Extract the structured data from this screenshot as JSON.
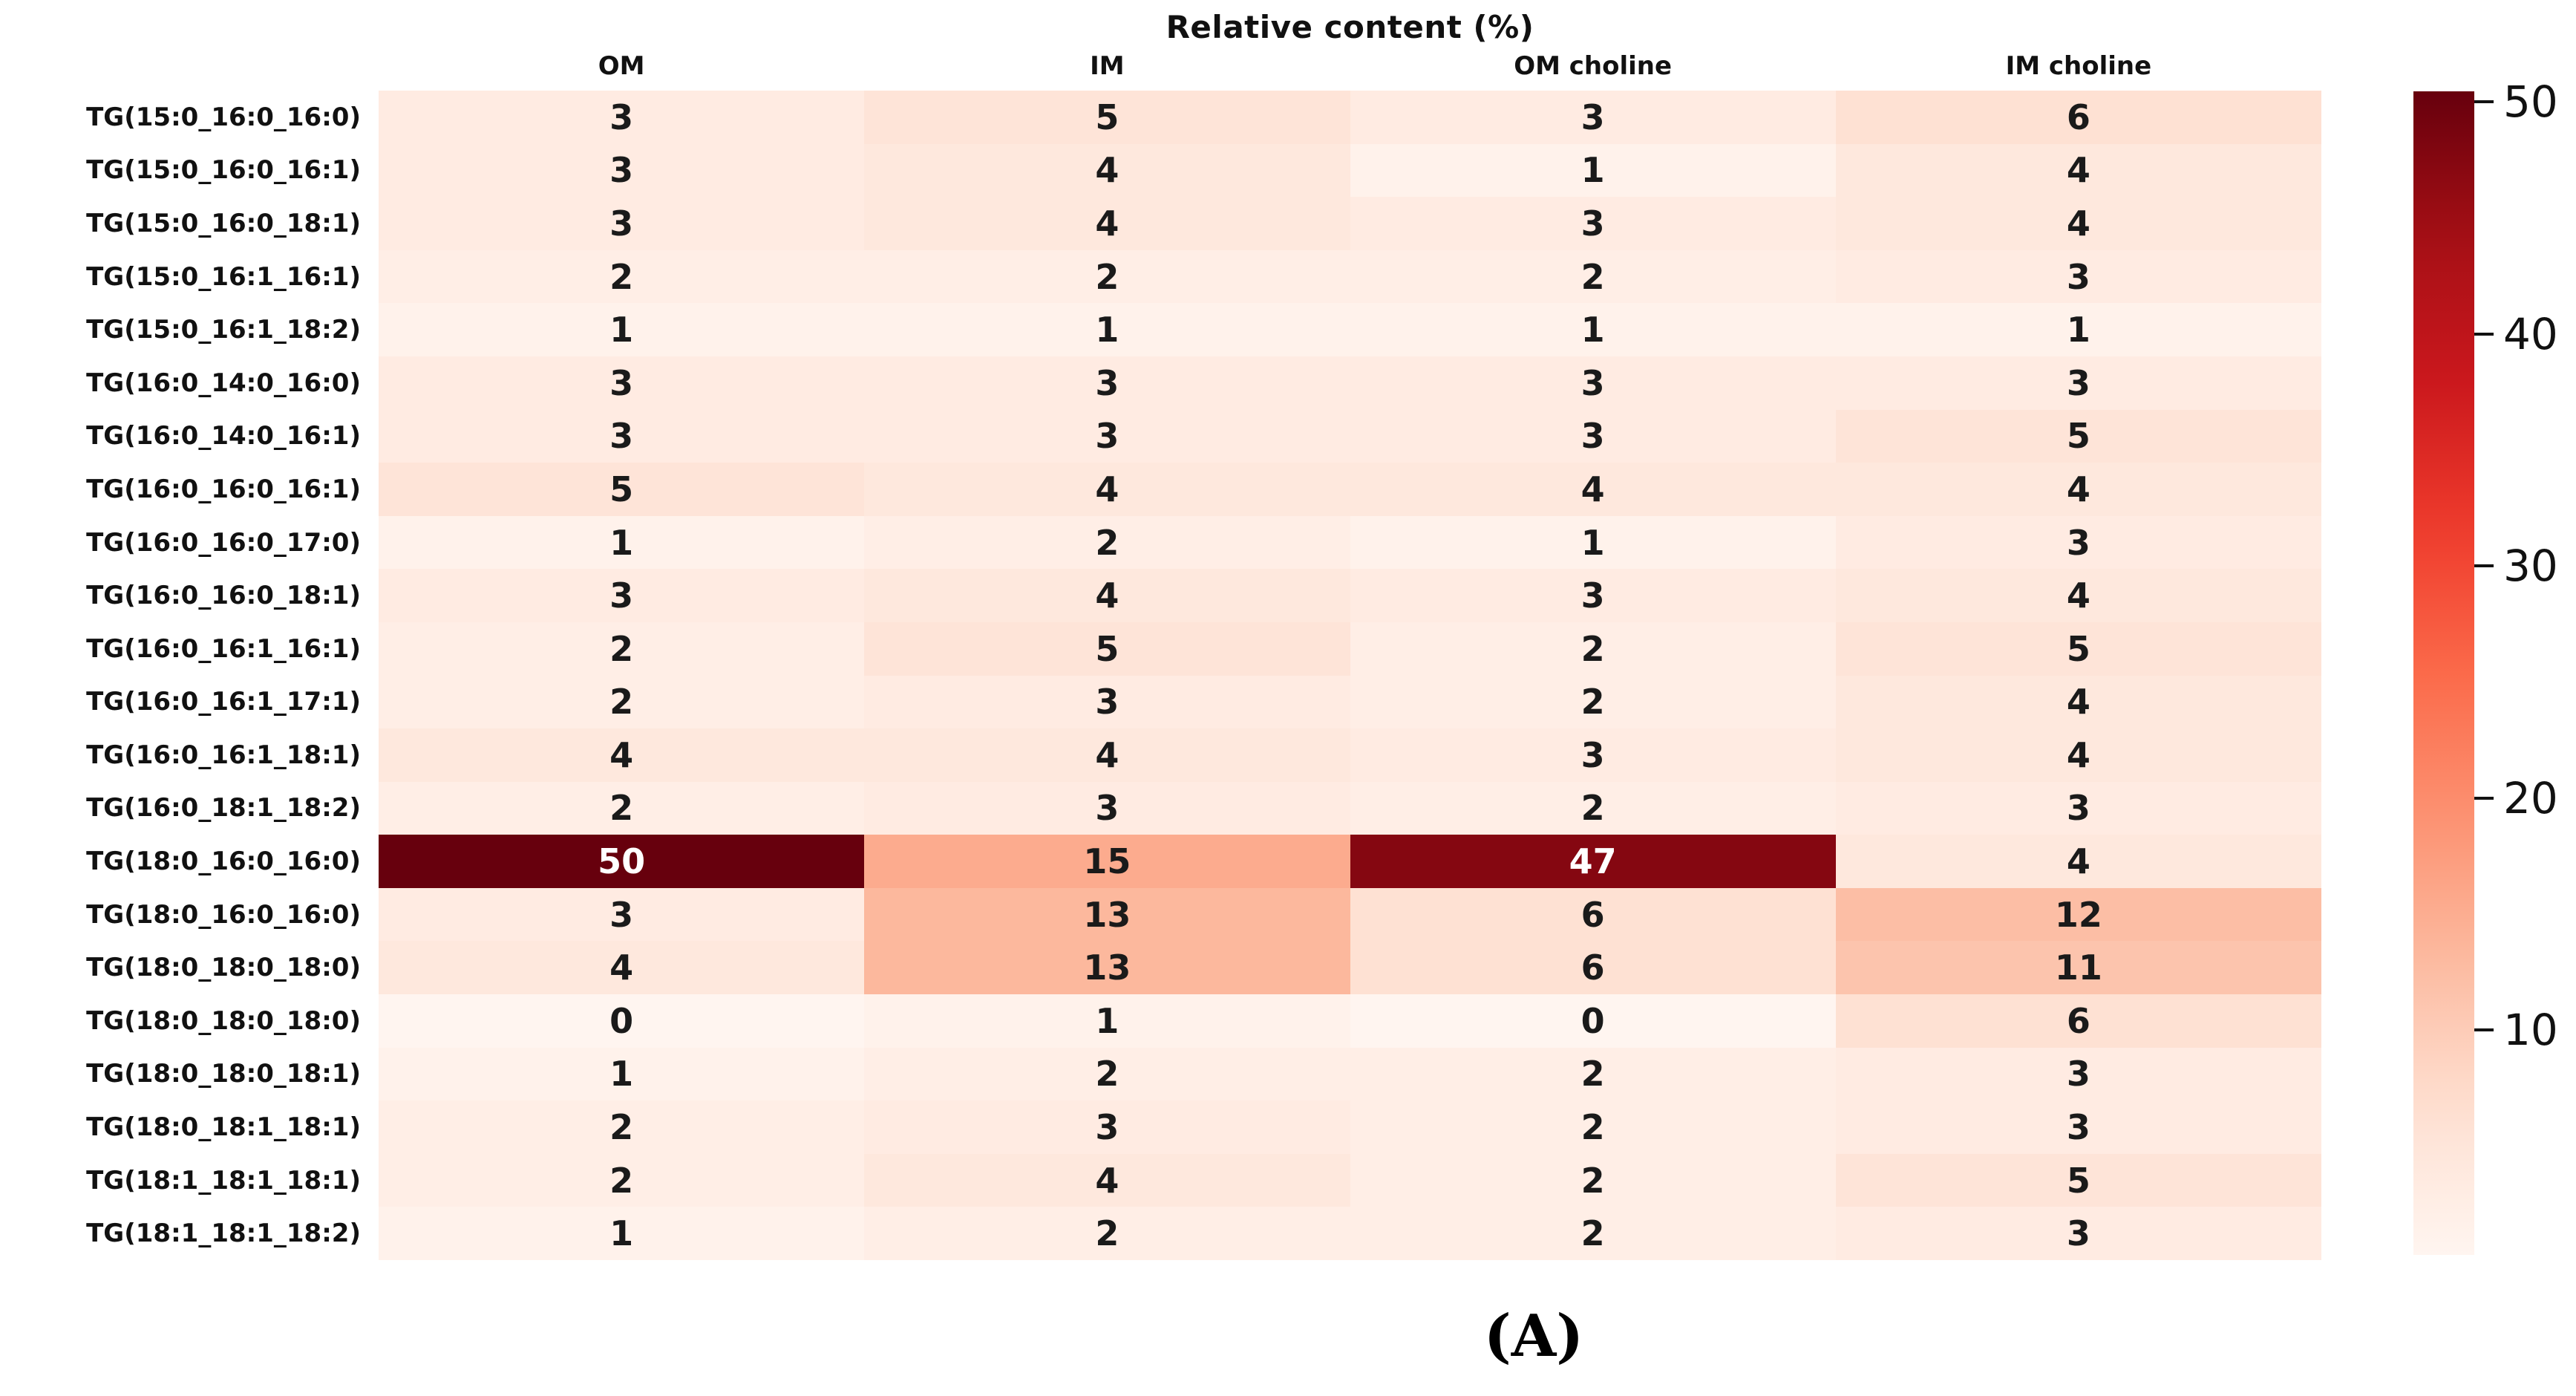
{
  "figure": {
    "caption": "(A)"
  },
  "chart_data": {
    "type": "heatmap",
    "title": "Relative content (%)",
    "columns": [
      "OM",
      "IM",
      "OM choline",
      "IM choline"
    ],
    "rows": [
      "TG(15:0_16:0_16:0)",
      "TG(15:0_16:0_16:1)",
      "TG(15:0_16:0_18:1)",
      "TG(15:0_16:1_16:1)",
      "TG(15:0_16:1_18:2)",
      "TG(16:0_14:0_16:0)",
      "TG(16:0_14:0_16:1)",
      "TG(16:0_16:0_16:1)",
      "TG(16:0_16:0_17:0)",
      "TG(16:0_16:0_18:1)",
      "TG(16:0_16:1_16:1)",
      "TG(16:0_16:1_17:1)",
      "TG(16:0_16:1_18:1)",
      "TG(16:0_18:1_18:2)",
      "TG(18:0_16:0_16:0)",
      "TG(18:0_16:0_16:0)",
      "TG(18:0_18:0_18:0)",
      "TG(18:0_18:0_18:0)",
      "TG(18:0_18:0_18:1)",
      "TG(18:0_18:1_18:1)",
      "TG(18:1_18:1_18:1)",
      "TG(18:1_18:1_18:2)"
    ],
    "values": [
      [
        3,
        5,
        3,
        6
      ],
      [
        3,
        4,
        1,
        4
      ],
      [
        3,
        4,
        3,
        4
      ],
      [
        2,
        2,
        2,
        3
      ],
      [
        1,
        1,
        1,
        1
      ],
      [
        3,
        3,
        3,
        3
      ],
      [
        3,
        3,
        3,
        5
      ],
      [
        5,
        4,
        4,
        4
      ],
      [
        1,
        2,
        1,
        3
      ],
      [
        3,
        4,
        3,
        4
      ],
      [
        2,
        5,
        2,
        5
      ],
      [
        2,
        3,
        2,
        4
      ],
      [
        4,
        4,
        3,
        4
      ],
      [
        2,
        3,
        2,
        3
      ],
      [
        50,
        15,
        47,
        4
      ],
      [
        3,
        13,
        6,
        12
      ],
      [
        4,
        13,
        6,
        11
      ],
      [
        0,
        1,
        0,
        6
      ],
      [
        1,
        2,
        2,
        3
      ],
      [
        2,
        3,
        2,
        3
      ],
      [
        2,
        4,
        2,
        5
      ],
      [
        1,
        2,
        2,
        3
      ]
    ],
    "colormap": "Reds",
    "vmin": 0,
    "vmax": 50,
    "colorbar_ticks": [
      50,
      40,
      30,
      20,
      10
    ],
    "legend_position": "right-colorbar",
    "grid": false
  },
  "colors": {
    "cell_text_dark": "#1a1a1a",
    "cell_text_light": "#ffffff",
    "label_text": "#111111",
    "colormap_anchors": [
      "#fff5f0",
      "#fee0d2",
      "#fcbba1",
      "#fc9272",
      "#fb6a4a",
      "#ef3b2c",
      "#cb181d",
      "#a50f15",
      "#67000d"
    ]
  }
}
